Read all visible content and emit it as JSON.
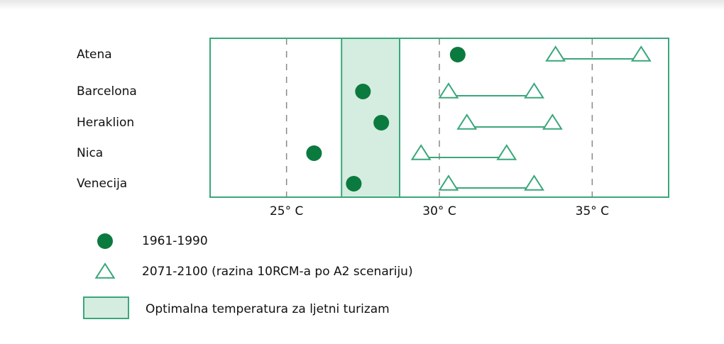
{
  "chart_data": {
    "type": "dot_range",
    "categories": [
      "Atena",
      "Barcelona",
      "Heraklion",
      "Nica",
      "Venecija"
    ],
    "series": [
      {
        "name": "1961-1990",
        "color": "#0b7a3e",
        "marker": "circle",
        "values": [
          30.6,
          27.5,
          28.1,
          25.9,
          27.2
        ]
      },
      {
        "name": "2071-2100 (razina 10RCM-a po A2 scenariju)",
        "color": "#3aa77a",
        "marker": "triangle",
        "values": [
          [
            33.8,
            36.6
          ],
          [
            30.3,
            33.1
          ],
          [
            30.9,
            33.7
          ],
          [
            29.4,
            32.2
          ],
          [
            30.3,
            33.1
          ]
        ]
      }
    ],
    "bands": [
      {
        "name": "Optimalna temperatura za ljetni turizam",
        "color": "#d5ece0",
        "range": [
          26.8,
          28.7
        ]
      }
    ],
    "xlim": [
      22.5,
      37.5
    ],
    "xticks": [
      {
        "value": 25,
        "label": "25° C"
      },
      {
        "value": 30,
        "label": "30° C"
      },
      {
        "value": 35,
        "label": "35° C"
      }
    ],
    "grid": true
  }
}
